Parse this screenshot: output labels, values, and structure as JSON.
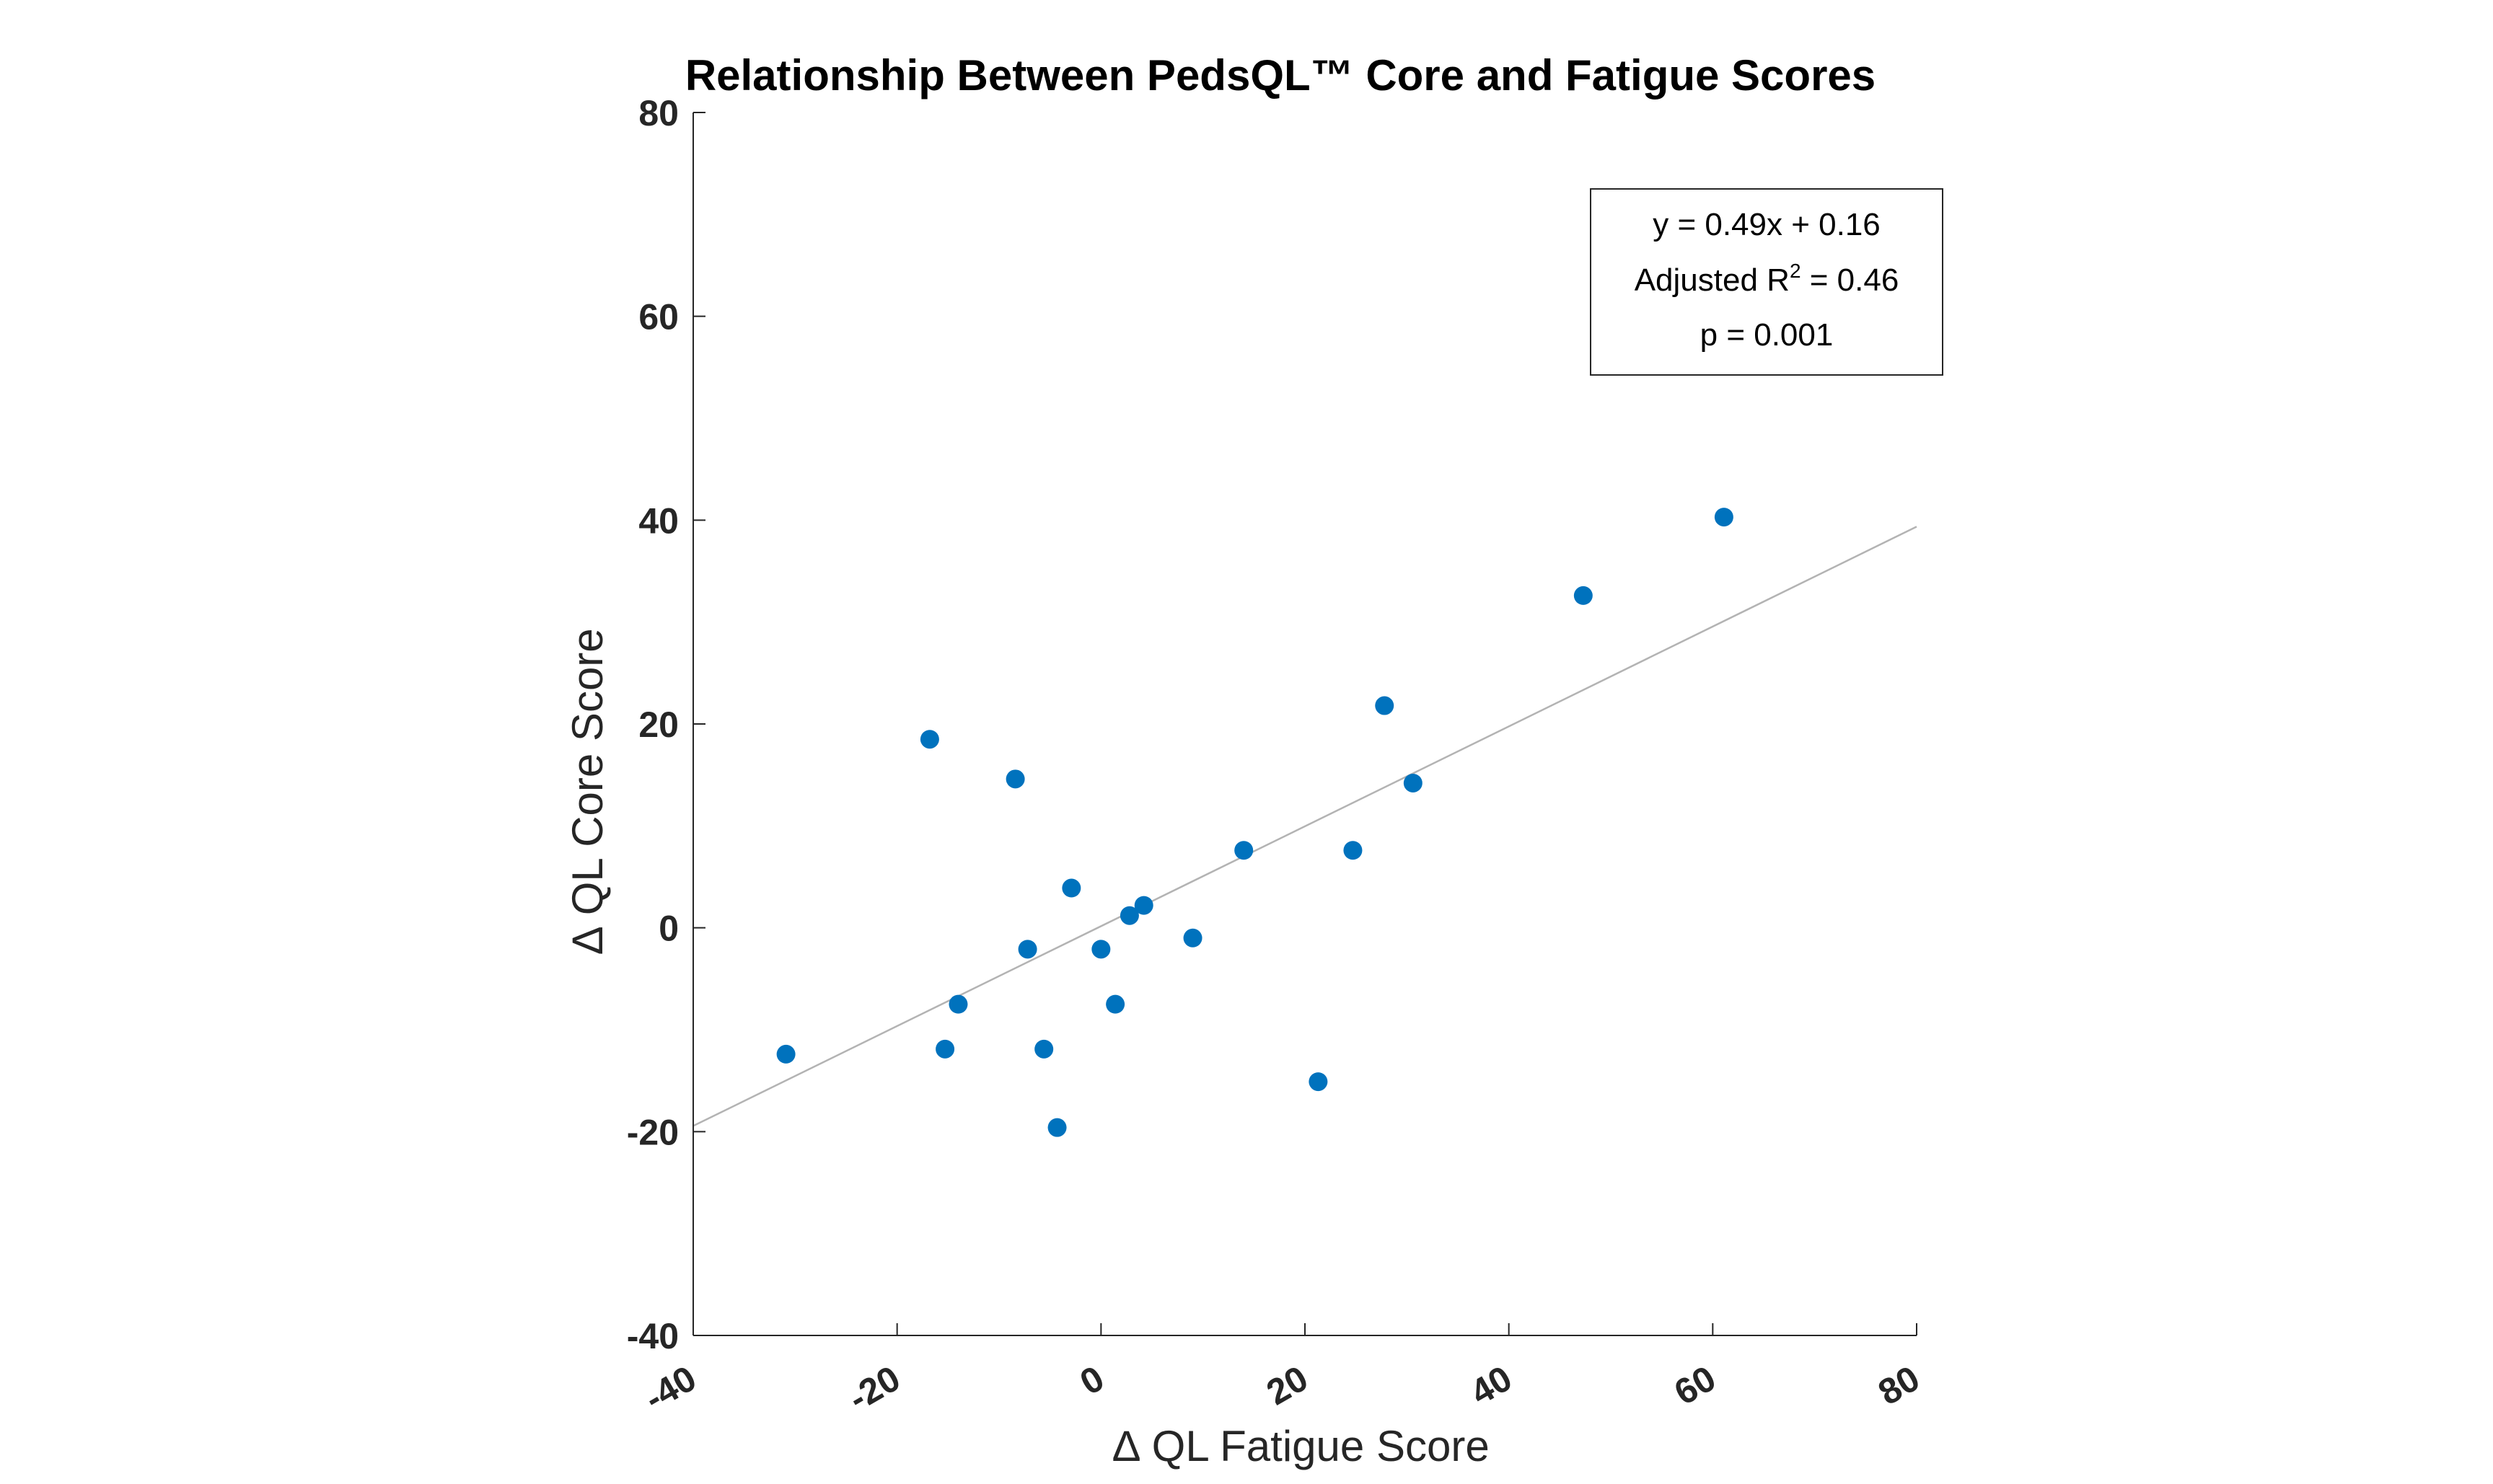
{
  "chart_data": {
    "type": "scatter",
    "title": "Relationship Between PedsQL™ Core and Fatigue Scores",
    "xlabel": "∆ QL Fatigue Score",
    "ylabel": "∆ QL Core Score",
    "xlim": [
      -40,
      80
    ],
    "ylim": [
      -40,
      80
    ],
    "xticks": [
      "-40",
      "-20",
      "0",
      "20",
      "40",
      "60",
      "80"
    ],
    "yticks": [
      "-40",
      "-20",
      "0",
      "20",
      "40",
      "60",
      "80"
    ],
    "grid": false,
    "marker_color": "#0072BD",
    "fit_line_color": "#b3b3b3",
    "fit_line": {
      "slope": 0.49,
      "intercept": 0.16
    },
    "annotation": {
      "equation": "y = 0.49x + 0.16",
      "r2_prefix": "Adjusted R",
      "r2_sup": "2",
      "r2_suffix": " = 0.46",
      "p_value": "p = 0.001"
    },
    "points": [
      {
        "x": -30.9,
        "y": -12.4
      },
      {
        "x": -16.8,
        "y": 18.5
      },
      {
        "x": -15.3,
        "y": -11.9
      },
      {
        "x": -14.0,
        "y": -7.5
      },
      {
        "x": -8.4,
        "y": 14.6
      },
      {
        "x": -7.2,
        "y": -2.1
      },
      {
        "x": -5.6,
        "y": -11.9
      },
      {
        "x": -4.3,
        "y": -19.6
      },
      {
        "x": -2.9,
        "y": 3.9
      },
      {
        "x": 0.0,
        "y": -2.1
      },
      {
        "x": 1.4,
        "y": -7.5
      },
      {
        "x": 2.8,
        "y": 1.2
      },
      {
        "x": 4.2,
        "y": 2.2
      },
      {
        "x": 9.0,
        "y": -1.0
      },
      {
        "x": 14.0,
        "y": 7.6
      },
      {
        "x": 21.3,
        "y": -15.1
      },
      {
        "x": 24.7,
        "y": 7.6
      },
      {
        "x": 27.8,
        "y": 21.8
      },
      {
        "x": 30.6,
        "y": 14.2
      },
      {
        "x": 47.3,
        "y": 32.6
      },
      {
        "x": 61.1,
        "y": 40.3
      }
    ]
  }
}
